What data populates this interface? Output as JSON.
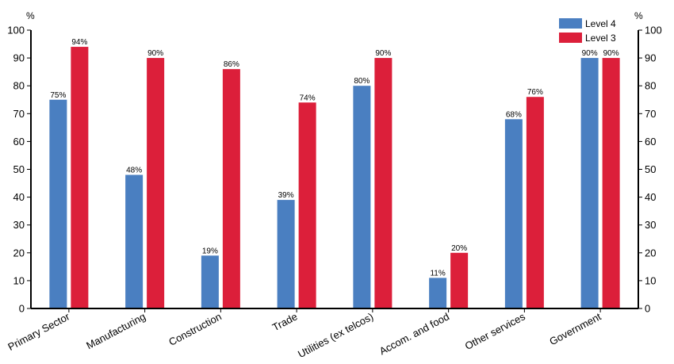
{
  "chart_data": {
    "type": "bar",
    "categories": [
      "Primary Sector",
      "Manufacturing",
      "Construction",
      "Trade",
      "Utilities (ex telcos)",
      "Accom. and food",
      "Other services",
      "Government"
    ],
    "series": [
      {
        "name": "Level 4",
        "color": "#4a7fc1",
        "values": [
          75,
          48,
          19,
          39,
          80,
          11,
          68,
          90
        ],
        "labels": [
          "75%",
          "48%",
          "19%",
          "39%",
          "80%",
          "11%",
          "68%",
          "90%"
        ]
      },
      {
        "name": "Level 3",
        "color": "#dc1f3a",
        "values": [
          94,
          90,
          86,
          74,
          90,
          20,
          76,
          90
        ],
        "labels": [
          "94%",
          "90%",
          "86%",
          "74%",
          "90%",
          "20%",
          "76%",
          "90%"
        ]
      }
    ],
    "ylim": [
      0,
      100
    ],
    "yticks": [
      0,
      10,
      20,
      30,
      40,
      50,
      60,
      70,
      80,
      90,
      100
    ],
    "y_unit_left": "%",
    "y_unit_right": "%",
    "legend_position": "top-right",
    "grid": false
  }
}
